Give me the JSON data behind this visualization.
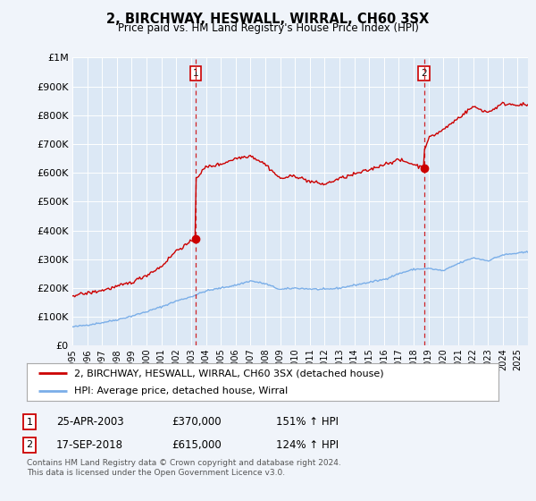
{
  "title": "2, BIRCHWAY, HESWALL, WIRRAL, CH60 3SX",
  "subtitle": "Price paid vs. HM Land Registry's House Price Index (HPI)",
  "ytick_values": [
    0,
    100000,
    200000,
    300000,
    400000,
    500000,
    600000,
    700000,
    800000,
    900000,
    1000000
  ],
  "ylim": [
    0,
    1000000
  ],
  "xlim_start": 1995.0,
  "xlim_end": 2025.7,
  "marker1_x": 2003.31,
  "marker1_y": 370000,
  "marker2_x": 2018.71,
  "marker2_y": 615000,
  "vline1_x": 2003.31,
  "vline2_x": 2018.71,
  "sale_color": "#cc0000",
  "hpi_color": "#7aaee8",
  "vline_color": "#cc0000",
  "marker_box_color": "#cc0000",
  "legend_sale_label": "2, BIRCHWAY, HESWALL, WIRRAL, CH60 3SX (detached house)",
  "legend_hpi_label": "HPI: Average price, detached house, Wirral",
  "table_rows": [
    [
      "1",
      "25-APR-2003",
      "£370,000",
      "151% ↑ HPI"
    ],
    [
      "2",
      "17-SEP-2018",
      "£615,000",
      "124% ↑ HPI"
    ]
  ],
  "footnote1": "Contains HM Land Registry data © Crown copyright and database right 2024.",
  "footnote2": "This data is licensed under the Open Government Licence v3.0.",
  "background_color": "#f0f4fa",
  "plot_bg_color": "#dce8f5",
  "fig_width": 6.0,
  "fig_height": 5.6
}
